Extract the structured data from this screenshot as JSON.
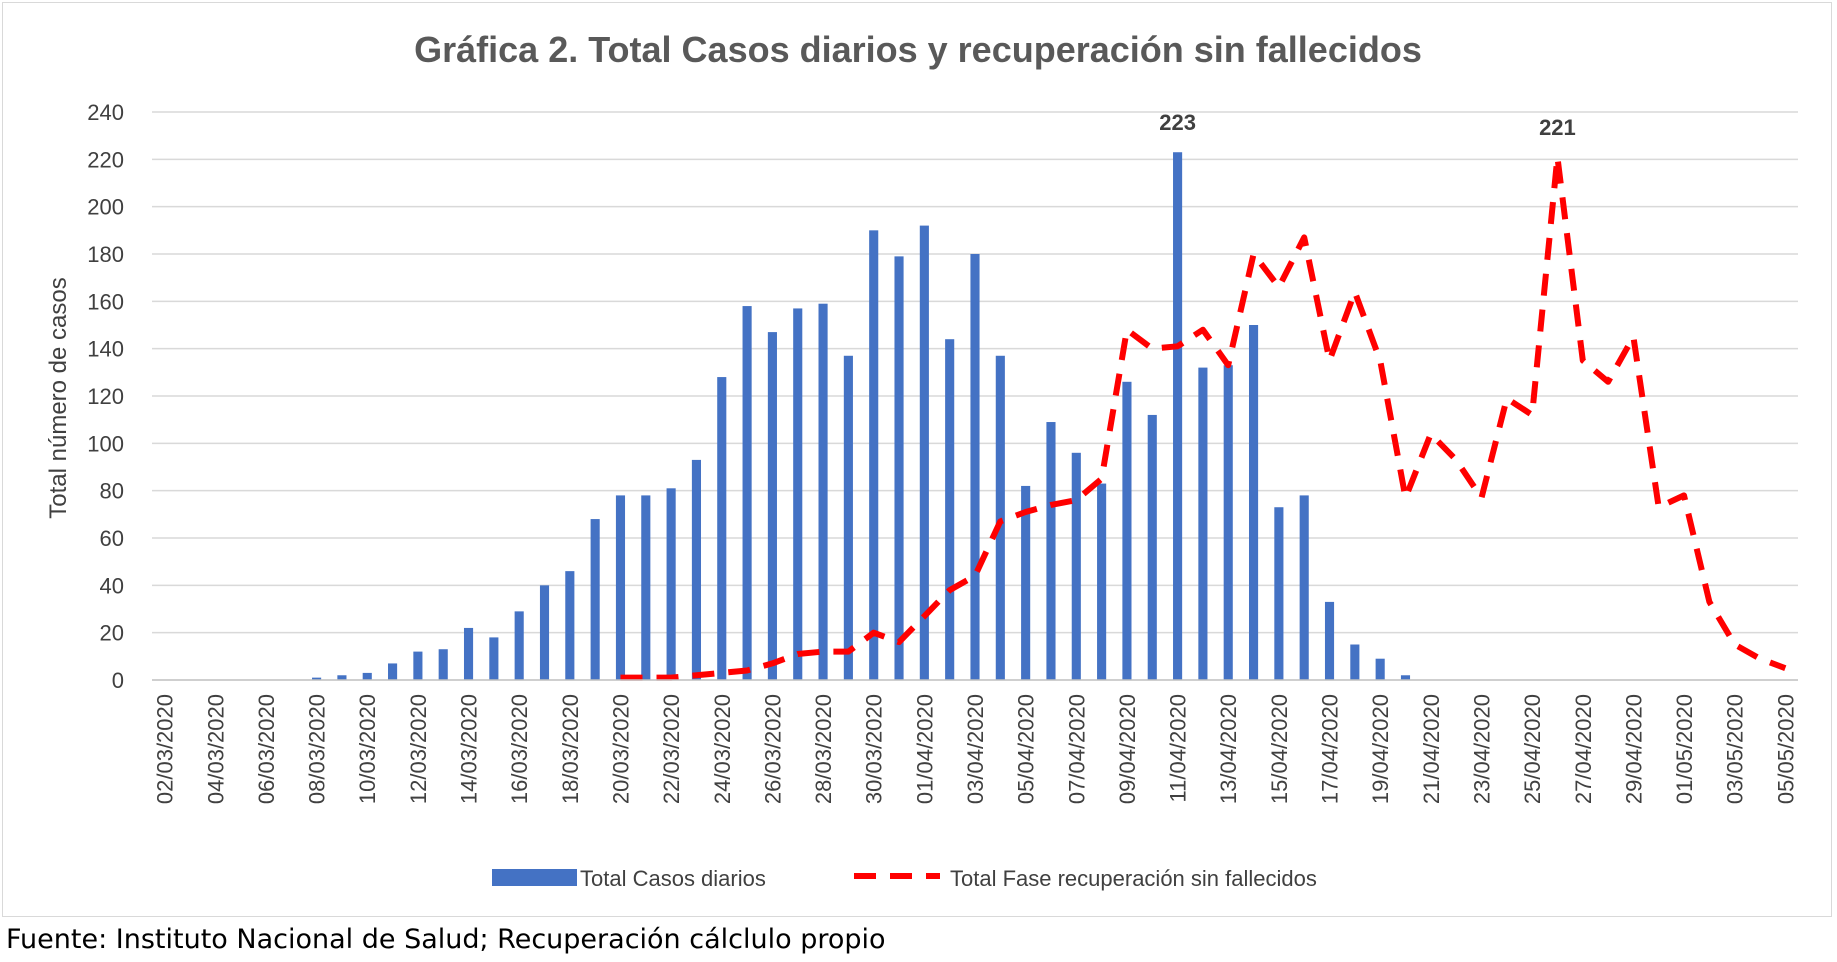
{
  "chart_data": {
    "type": "bar",
    "title": "Gráfica 2. Total Casos diarios y recuperación sin fallecidos",
    "ylabel": "Total número de casos",
    "xlabel": "",
    "ylim": [
      0,
      240
    ],
    "yticks": [
      0,
      20,
      40,
      60,
      80,
      100,
      120,
      140,
      160,
      180,
      200,
      220,
      240
    ],
    "grid": true,
    "legend_position": "bottom",
    "categories": [
      "02/03/2020",
      "03/03/2020",
      "04/03/2020",
      "05/03/2020",
      "06/03/2020",
      "07/03/2020",
      "08/03/2020",
      "09/03/2020",
      "10/03/2020",
      "11/03/2020",
      "12/03/2020",
      "13/03/2020",
      "14/03/2020",
      "15/03/2020",
      "16/03/2020",
      "17/03/2020",
      "18/03/2020",
      "19/03/2020",
      "20/03/2020",
      "21/03/2020",
      "22/03/2020",
      "23/03/2020",
      "24/03/2020",
      "25/03/2020",
      "26/03/2020",
      "27/03/2020",
      "28/03/2020",
      "29/03/2020",
      "30/03/2020",
      "31/03/2020",
      "01/04/2020",
      "02/04/2020",
      "03/04/2020",
      "04/04/2020",
      "05/04/2020",
      "06/04/2020",
      "07/04/2020",
      "08/04/2020",
      "09/04/2020",
      "10/04/2020",
      "11/04/2020",
      "12/04/2020",
      "13/04/2020",
      "14/04/2020",
      "15/04/2020",
      "16/04/2020",
      "17/04/2020",
      "18/04/2020",
      "19/04/2020",
      "20/04/2020",
      "21/04/2020",
      "22/04/2020",
      "23/04/2020",
      "24/04/2020",
      "25/04/2020",
      "26/04/2020",
      "27/04/2020",
      "28/04/2020",
      "29/04/2020",
      "30/04/2020",
      "01/05/2020",
      "02/05/2020",
      "03/05/2020",
      "04/05/2020",
      "05/05/2020"
    ],
    "tick_labels": [
      "02/03/2020",
      "04/03/2020",
      "06/03/2020",
      "08/03/2020",
      "10/03/2020",
      "12/03/2020",
      "14/03/2020",
      "16/03/2020",
      "18/03/2020",
      "20/03/2020",
      "22/03/2020",
      "24/03/2020",
      "26/03/2020",
      "28/03/2020",
      "30/03/2020",
      "01/04/2020",
      "03/04/2020",
      "05/04/2020",
      "07/04/2020",
      "09/04/2020",
      "11/04/2020",
      "13/04/2020",
      "15/04/2020",
      "17/04/2020",
      "19/04/2020",
      "21/04/2020",
      "23/04/2020",
      "25/04/2020",
      "27/04/2020",
      "29/04/2020",
      "01/05/2020",
      "03/05/2020",
      "05/05/2020"
    ],
    "series": [
      {
        "name": "Total Casos diarios",
        "type": "bar",
        "color": "#4472C4",
        "values": [
          0,
          0,
          0,
          0,
          0,
          0,
          1,
          2,
          3,
          7,
          12,
          13,
          22,
          18,
          29,
          40,
          46,
          68,
          78,
          78,
          81,
          93,
          128,
          158,
          147,
          157,
          159,
          137,
          190,
          179,
          192,
          144,
          180,
          137,
          82,
          109,
          96,
          83,
          126,
          112,
          223,
          132,
          133,
          150,
          73,
          78,
          33,
          15,
          9,
          2,
          0,
          0,
          0,
          0,
          0,
          0,
          0,
          0,
          0,
          0,
          0,
          0,
          0,
          0,
          0
        ]
      },
      {
        "name": "Total Fase recuperación sin fallecidos",
        "type": "line",
        "style": "dashed",
        "color": "#FF0000",
        "values": [
          null,
          null,
          null,
          null,
          null,
          null,
          null,
          null,
          null,
          null,
          null,
          null,
          null,
          null,
          null,
          null,
          null,
          null,
          1,
          1,
          1,
          2,
          3,
          4,
          7,
          11,
          12,
          12,
          20,
          16,
          27,
          38,
          44,
          67,
          71,
          74,
          76,
          85,
          148,
          140,
          141,
          148,
          133,
          180,
          166,
          187,
          135,
          164,
          135,
          77,
          104,
          93,
          77,
          119,
          112,
          221,
          135,
          126,
          145,
          73,
          78,
          33,
          15,
          9,
          5
        ]
      }
    ],
    "annotations": [
      {
        "series": 0,
        "category": "11/04/2020",
        "text": "223"
      },
      {
        "series": 1,
        "category": "26/04/2020",
        "text": "221"
      }
    ]
  },
  "source": "Fuente: Instituto Nacional de Salud; Recuperación cálclulo propio"
}
